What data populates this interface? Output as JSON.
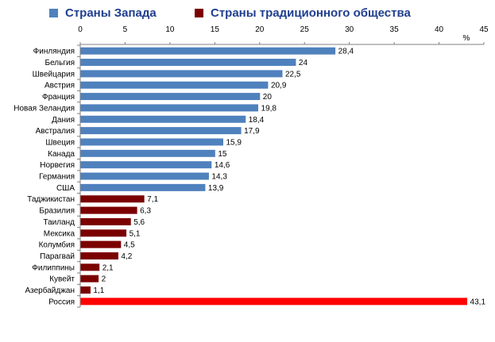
{
  "legend": [
    {
      "label": "Страны Запада",
      "color": "#4f81bd"
    },
    {
      "label": "Страны традиционного общества",
      "color": "#7b0000"
    }
  ],
  "colors": {
    "west": "#4f81bd",
    "traditional": "#7b0000",
    "russia": "#ff0000"
  },
  "chart_data": {
    "type": "bar",
    "orientation": "horizontal",
    "xlim": [
      0,
      45
    ],
    "xticks": [
      0,
      5,
      10,
      15,
      20,
      25,
      30,
      35,
      40,
      45
    ],
    "xunit": "%",
    "categories": [
      "Финляндия",
      "Бельгия",
      "Швейцария",
      "Австрия",
      "Франция",
      "Новая Зеландия",
      "Дания",
      "Австралия",
      "Швеция",
      "Канада",
      "Норвегия",
      "Германия",
      "США",
      "Таджикистан",
      "Бразилия",
      "Таиланд",
      "Мексика",
      "Колумбия",
      "Парагвай",
      "Филиппины",
      "Кувейт",
      "Азербайджан",
      "Россия"
    ],
    "values": [
      28.4,
      24,
      22.5,
      20.9,
      20,
      19.8,
      18.4,
      17.9,
      15.9,
      15,
      14.6,
      14.3,
      13.9,
      7.1,
      6.3,
      5.6,
      5.1,
      4.5,
      4.2,
      2.1,
      2,
      1.1,
      43.1
    ],
    "value_labels": [
      "28,4",
      "24",
      "22,5",
      "20,9",
      "20",
      "19,8",
      "18,4",
      "17,9",
      "15,9",
      "15",
      "14,6",
      "14,3",
      "13,9",
      "7,1",
      "6,3",
      "5,6",
      "5,1",
      "4,5",
      "4,2",
      "2,1",
      "2",
      "1,1",
      "43,1"
    ],
    "groups": [
      "west",
      "west",
      "west",
      "west",
      "west",
      "west",
      "west",
      "west",
      "west",
      "west",
      "west",
      "west",
      "west",
      "traditional",
      "traditional",
      "traditional",
      "traditional",
      "traditional",
      "traditional",
      "traditional",
      "traditional",
      "traditional",
      "russia"
    ]
  }
}
